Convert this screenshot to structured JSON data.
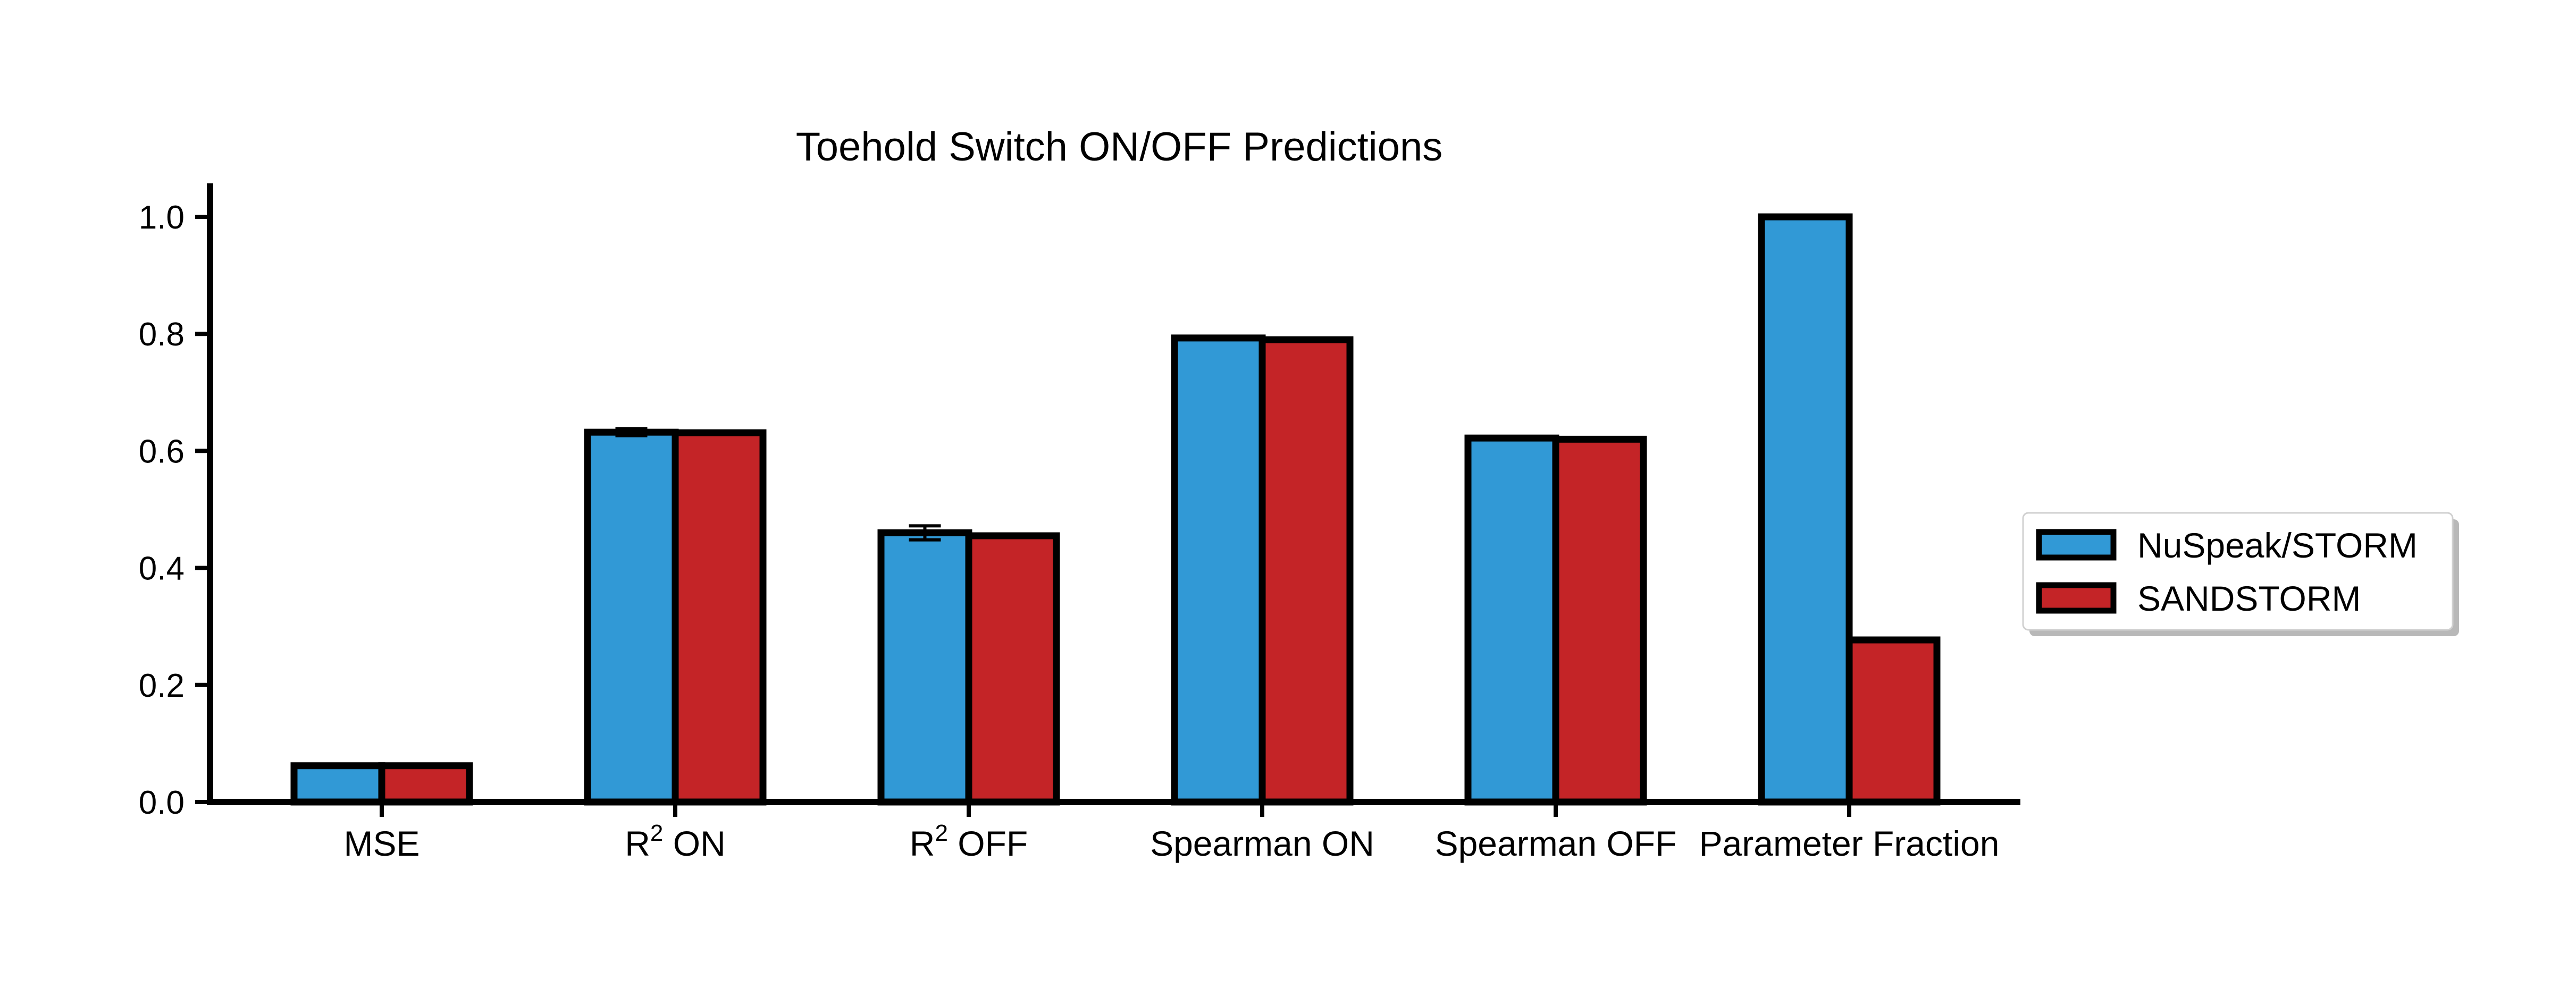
{
  "chart_data": {
    "type": "bar",
    "title": "Toehold Switch ON/OFF Predictions",
    "xlabel": "",
    "ylabel": "",
    "ylim": [
      0,
      1.05
    ],
    "yticks": [
      "0.0",
      "0.2",
      "0.4",
      "0.6",
      "0.8",
      "1.0"
    ],
    "categories": [
      {
        "base": "MSE",
        "sup": "",
        "rest": ""
      },
      {
        "base": "R",
        "sup": "2",
        "rest": " ON"
      },
      {
        "base": "R",
        "sup": "2",
        "rest": " OFF"
      },
      {
        "base": "Spearman ON",
        "sup": "",
        "rest": ""
      },
      {
        "base": "Spearman OFF",
        "sup": "",
        "rest": ""
      },
      {
        "base": "Parameter Fraction",
        "sup": "",
        "rest": ""
      }
    ],
    "series": [
      {
        "name": "NuSpeak/STORM",
        "color": "#3199d6",
        "values": [
          0.062,
          0.632,
          0.46,
          0.793,
          0.622,
          1.0
        ],
        "errors": [
          0,
          0.006,
          0.012,
          0,
          0.002,
          0
        ]
      },
      {
        "name": "SANDSTORM",
        "color": "#c42427",
        "values": [
          0.062,
          0.631,
          0.455,
          0.79,
          0.62,
          0.277
        ],
        "errors": [
          0,
          0,
          0,
          0,
          0,
          0
        ]
      }
    ],
    "legend": {
      "position": "right"
    },
    "grid": false
  }
}
